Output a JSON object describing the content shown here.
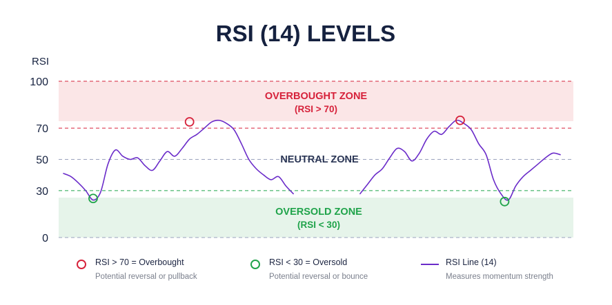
{
  "chart_data": {
    "type": "line",
    "title": "RSI (14) LEVELS",
    "ylabel": "RSI",
    "xlabel": "",
    "ylim": [
      0,
      100
    ],
    "yticks": [
      0,
      30,
      50,
      70,
      100
    ],
    "grid": false,
    "colors": {
      "title": "#15213f",
      "line": "#6a2bc9",
      "overbought": "#d6213a",
      "oversold": "#1fa34a",
      "neutral_text": "#2a3554",
      "zone_overbought_fill": "#fbe6e7",
      "zone_oversold_fill": "#e6f4ea",
      "neutral_guide": "#9aa2bd",
      "axis_text": "#15213f"
    },
    "zones": {
      "overbought": {
        "range": [
          70,
          100
        ],
        "label_line1": "OVERBOUGHT ZONE",
        "label_line2": "(RSI > 70)"
      },
      "neutral": {
        "label": "NEUTRAL ZONE"
      },
      "oversold": {
        "range": [
          0,
          30
        ],
        "label_line1": "OVERSOLD ZONE",
        "label_line2": "(RSI < 30)"
      }
    },
    "series": [
      {
        "x": [
          0,
          1,
          2,
          3,
          4,
          5,
          6,
          7,
          8,
          9,
          10,
          11,
          12,
          13,
          14,
          15,
          16,
          17,
          18,
          19,
          20,
          21,
          22,
          23,
          24,
          25,
          26,
          27,
          28,
          29,
          30,
          31,
          32,
          33,
          34,
          35,
          36,
          37,
          38,
          39,
          40,
          41,
          42,
          43,
          44,
          45,
          46,
          47,
          48,
          49,
          50,
          51,
          52,
          53,
          54,
          55,
          56,
          57,
          58,
          59,
          60,
          61,
          62,
          63,
          64,
          65,
          66,
          67,
          68,
          69,
          70,
          71,
          72,
          73,
          74,
          75,
          76
        ],
        "values": [
          null,
          null,
          null,
          null,
          null,
          null,
          null,
          null,
          null,
          null,
          null,
          null,
          null,
          null,
          null,
          null,
          null,
          null,
          null,
          null,
          null,
          null,
          null,
          null,
          null,
          null,
          null,
          null,
          null,
          null,
          null,
          null,
          null,
          null,
          null,
          null,
          null,
          null,
          null,
          null,
          null,
          null,
          null,
          null,
          null,
          null,
          null,
          null,
          null,
          null,
          null,
          null,
          null,
          null,
          null,
          null,
          null,
          null,
          null,
          null,
          null,
          null,
          null,
          null,
          null,
          null,
          null,
          null,
          null,
          null,
          null,
          null,
          null,
          null,
          null,
          null,
          null
        ]
      }
    ],
    "segments": [
      {
        "x": [
          0,
          2,
          4,
          6,
          8,
          10,
          12,
          14,
          16,
          18,
          20,
          22,
          24,
          26,
          28,
          30,
          32,
          34,
          36,
          38,
          40,
          42,
          44,
          46,
          48,
          50,
          52,
          54,
          56,
          58,
          60,
          62,
          64,
          66,
          68,
          70,
          72,
          74,
          76,
          78,
          80,
          82,
          84,
          86
        ],
        "values": [
          41,
          39,
          35,
          30,
          24,
          29,
          47,
          56,
          52,
          50,
          51,
          46,
          43,
          49,
          55,
          52,
          57,
          63,
          66,
          70,
          74,
          75,
          73,
          69,
          60,
          50,
          44,
          40,
          37,
          39,
          33,
          28,
          null,
          null,
          null,
          null,
          null,
          null,
          null,
          null,
          null,
          null,
          null,
          null
        ]
      }
    ],
    "lines": [
      {
        "name": "",
        "x": [
          0,
          2,
          4,
          6,
          8,
          10,
          12,
          14,
          16,
          18,
          20,
          22,
          24,
          26,
          28,
          30,
          32,
          34,
          36,
          38,
          40,
          42,
          44,
          46,
          48,
          50,
          52,
          54,
          56,
          58,
          60,
          62
        ],
        "values": [
          41,
          39,
          35,
          30,
          24,
          29,
          47,
          56,
          52,
          50,
          51,
          46,
          43,
          49,
          55,
          52,
          57,
          63,
          66,
          70,
          74,
          75,
          73,
          69,
          60,
          50,
          44,
          40,
          37,
          39,
          33,
          28
        ]
      },
      {
        "name": "",
        "x": [
          80,
          82,
          84,
          86,
          88,
          90,
          92,
          94,
          96,
          98,
          100,
          102,
          104,
          106,
          108,
          110,
          112,
          114,
          116,
          118,
          120,
          122,
          124,
          126,
          128,
          130,
          132,
          134
        ],
        "values": [
          28,
          34,
          40,
          44,
          51,
          57,
          55,
          49,
          54,
          63,
          68,
          66,
          71,
          75,
          73,
          69,
          60,
          53,
          37,
          28,
          24,
          33,
          39,
          43,
          47,
          51,
          54,
          53
        ]
      }
    ],
    "x_domain": [
      0,
      134
    ],
    "markers": [
      {
        "kind": "overbought",
        "x": 34,
        "y": 74
      },
      {
        "kind": "oversold",
        "x": 8,
        "y": 25
      },
      {
        "kind": "overbought",
        "x": 107,
        "y": 75
      },
      {
        "kind": "oversold",
        "x": 119,
        "y": 23
      }
    ]
  },
  "legend": [
    {
      "kind": "overbought",
      "label": "RSI > 70 = Overbought",
      "sub": "Potential reversal or pullback"
    },
    {
      "kind": "oversold",
      "label": "RSI < 30 = Oversold",
      "sub": "Potential reversal or bounce"
    },
    {
      "kind": "line",
      "label": "RSI Line (14)",
      "sub": "Measures momentum strength"
    }
  ]
}
